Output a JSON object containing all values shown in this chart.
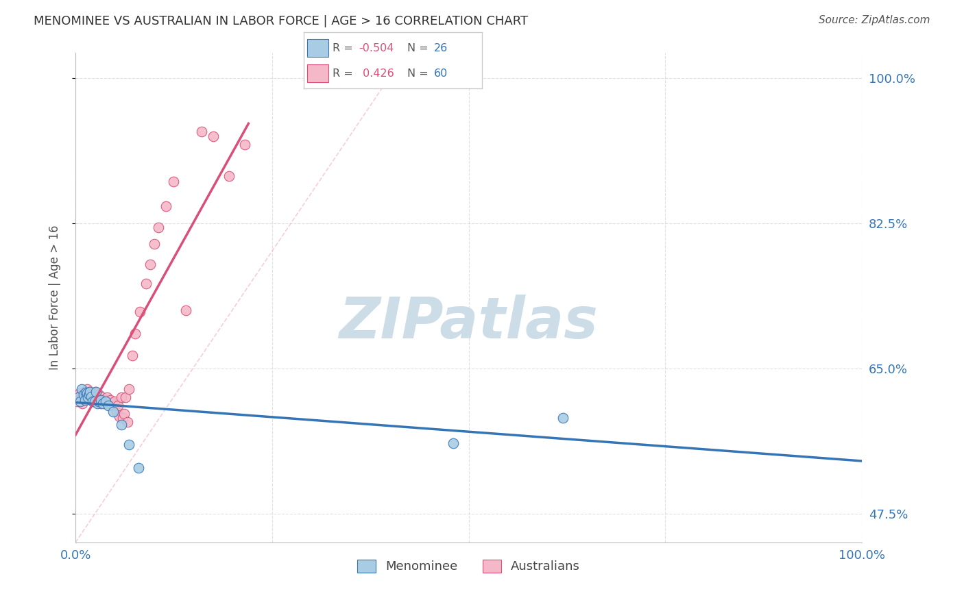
{
  "title": "MENOMINEE VS AUSTRALIAN IN LABOR FORCE | AGE > 16 CORRELATION CHART",
  "source": "Source: ZipAtlas.com",
  "ylabel": "In Labor Force | Age > 16",
  "xlim": [
    0.0,
    1.0
  ],
  "ylim": [
    0.44,
    1.03
  ],
  "yticks": [
    0.475,
    0.65,
    0.825,
    1.0
  ],
  "ytick_labels": [
    "47.5%",
    "65.0%",
    "82.5%",
    "100.0%"
  ],
  "xtick_labels": [
    "0.0%",
    "100.0%"
  ],
  "xtick_positions": [
    0.0,
    1.0
  ],
  "menominee_R": -0.504,
  "menominee_N": 26,
  "australians_R": 0.426,
  "australians_N": 60,
  "blue_color": "#a8cce4",
  "pink_color": "#f4b8c8",
  "blue_line_color": "#3575b5",
  "pink_line_color": "#d94f78",
  "menominee_x": [
    0.003,
    0.006,
    0.008,
    0.01,
    0.012,
    0.013,
    0.015,
    0.016,
    0.017,
    0.018,
    0.02,
    0.022,
    0.024,
    0.026,
    0.028,
    0.03,
    0.032,
    0.035,
    0.038,
    0.042,
    0.048,
    0.058,
    0.068,
    0.08,
    0.48,
    0.62
  ],
  "menominee_y": [
    0.615,
    0.61,
    0.625,
    0.618,
    0.612,
    0.621,
    0.62,
    0.615,
    0.618,
    0.622,
    0.616,
    0.61,
    0.61,
    0.622,
    0.608,
    0.61,
    0.612,
    0.608,
    0.61,
    0.605,
    0.598,
    0.582,
    0.558,
    0.53,
    0.56,
    0.59
  ],
  "australians_x": [
    0.002,
    0.004,
    0.005,
    0.006,
    0.007,
    0.008,
    0.009,
    0.01,
    0.011,
    0.012,
    0.013,
    0.014,
    0.015,
    0.016,
    0.017,
    0.018,
    0.019,
    0.02,
    0.021,
    0.022,
    0.023,
    0.024,
    0.025,
    0.026,
    0.027,
    0.028,
    0.03,
    0.032,
    0.034,
    0.036,
    0.038,
    0.04,
    0.042,
    0.044,
    0.046,
    0.048,
    0.05,
    0.052,
    0.054,
    0.056,
    0.058,
    0.06,
    0.062,
    0.064,
    0.066,
    0.068,
    0.072,
    0.076,
    0.082,
    0.09,
    0.095,
    0.1,
    0.105,
    0.115,
    0.125,
    0.14,
    0.16,
    0.175,
    0.195,
    0.215
  ],
  "australians_y": [
    0.61,
    0.618,
    0.62,
    0.612,
    0.615,
    0.618,
    0.608,
    0.615,
    0.62,
    0.618,
    0.622,
    0.615,
    0.625,
    0.618,
    0.62,
    0.622,
    0.615,
    0.618,
    0.62,
    0.612,
    0.615,
    0.618,
    0.622,
    0.62,
    0.615,
    0.61,
    0.618,
    0.608,
    0.615,
    0.612,
    0.61,
    0.615,
    0.608,
    0.612,
    0.608,
    0.605,
    0.61,
    0.598,
    0.605,
    0.592,
    0.615,
    0.59,
    0.595,
    0.615,
    0.585,
    0.625,
    0.665,
    0.692,
    0.718,
    0.752,
    0.775,
    0.8,
    0.82,
    0.845,
    0.875,
    0.72,
    0.935,
    0.93,
    0.882,
    0.92
  ],
  "background_color": "#ffffff",
  "grid_color": "#cccccc",
  "watermark_text": "ZIPatlas",
  "watermark_color": "#ccdde8"
}
